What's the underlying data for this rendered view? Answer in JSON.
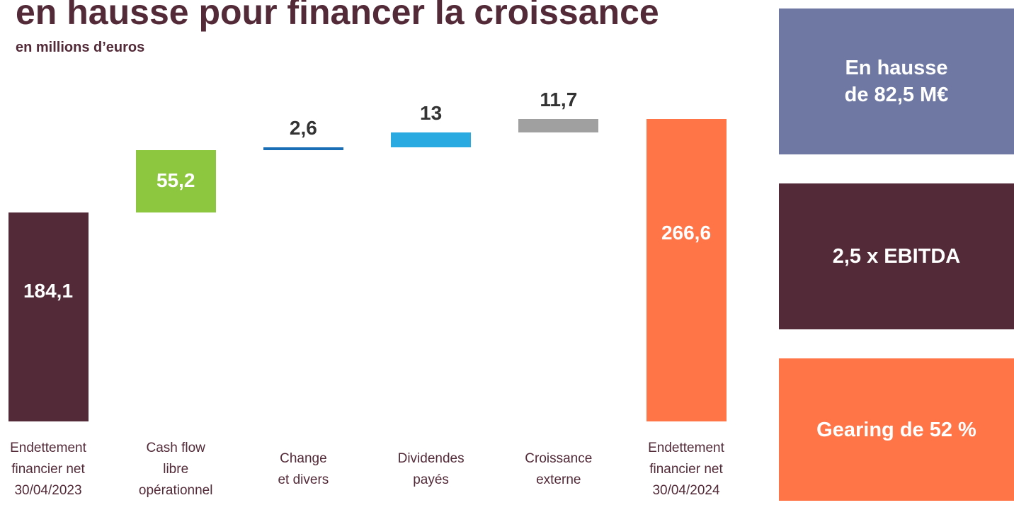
{
  "chart_data": {
    "type": "waterfall",
    "title": "en hausse pour financer la croissance",
    "subtitle": "en millions d’euros",
    "categories": [
      "Endettement\nfinancier net\n30/04/2023",
      "Cash flow\nlibre\nopérationnel",
      "Change\net divers",
      "Dividendes\npayés",
      "Croissance\nexterne",
      "Endettement\nfinancier net\n30/04/2024"
    ],
    "values": [
      184.1,
      55.2,
      2.6,
      13,
      11.7,
      266.6
    ],
    "value_labels": [
      "184,1",
      "55,2",
      "2,6",
      "13",
      "11,7",
      "266,6"
    ],
    "totals": [
      true,
      false,
      false,
      false,
      false,
      true
    ],
    "colors": [
      "#532a38",
      "#8dc63f",
      "#1a6eb5",
      "#29abe2",
      "#a0a0a0",
      "#ff7548"
    ]
  },
  "sidebar": [
    {
      "text": "En hausse\nde 82,5 M€",
      "color": "#6e78a2"
    },
    {
      "text": "2,5 x EBITDA",
      "color": "#532a38"
    },
    {
      "text": "Gearing de 52 %",
      "color": "#ff7548"
    }
  ]
}
